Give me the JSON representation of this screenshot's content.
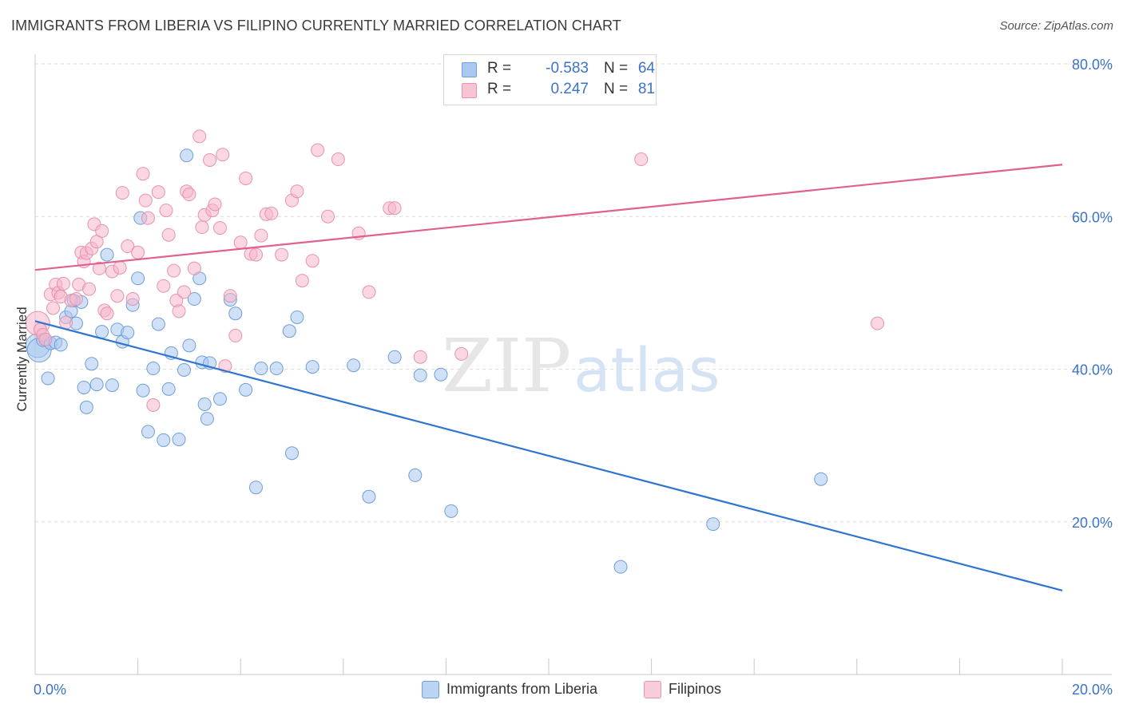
{
  "header": {
    "title": "IMMIGRANTS FROM LIBERIA VS FILIPINO CURRENTLY MARRIED CORRELATION CHART",
    "source": "Source: ZipAtlas.com"
  },
  "watermark": {
    "zip": "ZIP",
    "atlas": "atlas"
  },
  "legend_top": {
    "rows": [
      {
        "r_label": "R =",
        "r_value": "-0.583",
        "n_label": "N =",
        "n_value": "64"
      },
      {
        "r_label": "R =",
        "r_value": "0.247",
        "n_label": "N =",
        "n_value": "81"
      }
    ]
  },
  "legend_bottom": {
    "items": [
      {
        "label": "Immigrants from Liberia"
      },
      {
        "label": "Filipinos"
      }
    ]
  },
  "colors": {
    "liberia_fill": "#aac8f0",
    "liberia_stroke": "#6f9fd8",
    "liberia_line": "#2f74cf",
    "filipino_fill": "#f6b6cb",
    "filipino_stroke": "#e693b0",
    "filipino_line": "#e0608f",
    "tick_label": "#3a73c9",
    "grid": "#dddddd"
  },
  "chart_data": {
    "type": "scatter",
    "ylabel": "Currently Married",
    "xlim": [
      0,
      20
    ],
    "ylim": [
      0,
      80
    ],
    "x_ticks": [
      {
        "value": 0,
        "label": "0.0%"
      },
      {
        "value": 20,
        "label": "20.0%"
      }
    ],
    "y_ticks": [
      {
        "value": 20,
        "label": "20.0%"
      },
      {
        "value": 40,
        "label": "40.0%"
      },
      {
        "value": 60,
        "label": "60.0%"
      },
      {
        "value": 80,
        "label": "80.0%"
      }
    ],
    "grid": true,
    "legend": "top-center and bottom",
    "series": [
      {
        "name": "Immigrants from Liberia",
        "trend": [
          [
            0,
            46.3
          ],
          [
            20,
            11.0
          ]
        ],
        "points": [
          [
            0.05,
            43.1
          ],
          [
            0.08,
            42.5
          ],
          [
            0.15,
            43.8
          ],
          [
            0.2,
            43.9
          ],
          [
            0.25,
            38.8
          ],
          [
            0.3,
            43.4
          ],
          [
            0.4,
            43.5
          ],
          [
            0.5,
            43.2
          ],
          [
            0.6,
            46.8
          ],
          [
            0.7,
            47.6
          ],
          [
            0.75,
            49.0
          ],
          [
            0.8,
            46.0
          ],
          [
            0.9,
            48.8
          ],
          [
            0.95,
            37.6
          ],
          [
            1.0,
            35.0
          ],
          [
            1.1,
            40.7
          ],
          [
            1.2,
            38.0
          ],
          [
            1.3,
            44.9
          ],
          [
            1.4,
            55.0
          ],
          [
            1.5,
            37.9
          ],
          [
            1.6,
            45.2
          ],
          [
            1.7,
            43.6
          ],
          [
            1.8,
            44.8
          ],
          [
            1.9,
            48.4
          ],
          [
            2.0,
            51.9
          ],
          [
            2.05,
            59.8
          ],
          [
            2.1,
            37.2
          ],
          [
            2.2,
            31.8
          ],
          [
            2.3,
            40.1
          ],
          [
            2.4,
            45.9
          ],
          [
            2.5,
            30.7
          ],
          [
            2.6,
            37.4
          ],
          [
            2.65,
            42.1
          ],
          [
            2.8,
            30.8
          ],
          [
            2.9,
            39.9
          ],
          [
            2.95,
            68.0
          ],
          [
            3.0,
            43.1
          ],
          [
            3.1,
            49.2
          ],
          [
            3.2,
            51.9
          ],
          [
            3.25,
            40.9
          ],
          [
            3.3,
            35.4
          ],
          [
            3.35,
            33.5
          ],
          [
            3.4,
            40.8
          ],
          [
            3.6,
            36.1
          ],
          [
            3.8,
            49.1
          ],
          [
            3.9,
            47.3
          ],
          [
            4.1,
            37.3
          ],
          [
            4.3,
            24.5
          ],
          [
            4.4,
            40.1
          ],
          [
            4.7,
            40.1
          ],
          [
            4.95,
            45.0
          ],
          [
            5.0,
            29.0
          ],
          [
            5.1,
            46.8
          ],
          [
            5.4,
            40.3
          ],
          [
            6.2,
            40.5
          ],
          [
            6.5,
            23.3
          ],
          [
            7.0,
            41.6
          ],
          [
            7.4,
            26.1
          ],
          [
            7.5,
            39.2
          ],
          [
            7.9,
            39.3
          ],
          [
            8.1,
            21.4
          ],
          [
            11.4,
            14.1
          ],
          [
            13.2,
            19.7
          ],
          [
            15.3,
            25.6
          ]
        ]
      },
      {
        "name": "Filipinos",
        "trend": [
          [
            0,
            53.0
          ],
          [
            20,
            66.8
          ]
        ],
        "points": [
          [
            0.05,
            46.0
          ],
          [
            0.1,
            45.2
          ],
          [
            0.15,
            44.5
          ],
          [
            0.2,
            43.9
          ],
          [
            0.3,
            49.8
          ],
          [
            0.35,
            48.0
          ],
          [
            0.4,
            51.1
          ],
          [
            0.45,
            50.0
          ],
          [
            0.5,
            49.5
          ],
          [
            0.55,
            51.2
          ],
          [
            0.6,
            46.1
          ],
          [
            0.7,
            49.0
          ],
          [
            0.8,
            49.2
          ],
          [
            0.85,
            51.1
          ],
          [
            0.9,
            55.3
          ],
          [
            0.95,
            54.1
          ],
          [
            1.0,
            55.2
          ],
          [
            1.05,
            50.5
          ],
          [
            1.1,
            55.8
          ],
          [
            1.15,
            59.0
          ],
          [
            1.2,
            56.7
          ],
          [
            1.25,
            53.2
          ],
          [
            1.3,
            58.1
          ],
          [
            1.35,
            47.7
          ],
          [
            1.4,
            47.3
          ],
          [
            1.5,
            52.8
          ],
          [
            1.6,
            49.6
          ],
          [
            1.65,
            53.3
          ],
          [
            1.7,
            63.1
          ],
          [
            1.8,
            56.1
          ],
          [
            1.9,
            49.2
          ],
          [
            2.0,
            55.3
          ],
          [
            2.1,
            65.6
          ],
          [
            2.15,
            62.1
          ],
          [
            2.2,
            59.8
          ],
          [
            2.3,
            35.3
          ],
          [
            2.4,
            63.2
          ],
          [
            2.5,
            50.9
          ],
          [
            2.55,
            60.8
          ],
          [
            2.6,
            57.6
          ],
          [
            2.7,
            52.9
          ],
          [
            2.75,
            49.0
          ],
          [
            2.8,
            47.6
          ],
          [
            2.9,
            50.1
          ],
          [
            2.95,
            63.3
          ],
          [
            3.0,
            62.9
          ],
          [
            3.1,
            53.2
          ],
          [
            3.2,
            70.5
          ],
          [
            3.25,
            58.6
          ],
          [
            3.3,
            60.2
          ],
          [
            3.4,
            67.4
          ],
          [
            3.45,
            60.8
          ],
          [
            3.5,
            61.6
          ],
          [
            3.6,
            58.5
          ],
          [
            3.65,
            68.1
          ],
          [
            3.7,
            40.4
          ],
          [
            3.8,
            49.6
          ],
          [
            3.9,
            44.4
          ],
          [
            4.0,
            56.6
          ],
          [
            4.1,
            65.0
          ],
          [
            4.2,
            55.1
          ],
          [
            4.3,
            55.0
          ],
          [
            4.4,
            57.5
          ],
          [
            4.5,
            60.3
          ],
          [
            4.6,
            60.4
          ],
          [
            4.8,
            55.0
          ],
          [
            5.0,
            62.1
          ],
          [
            5.1,
            63.3
          ],
          [
            5.2,
            51.6
          ],
          [
            5.4,
            54.2
          ],
          [
            5.5,
            68.7
          ],
          [
            5.7,
            60.0
          ],
          [
            5.9,
            67.5
          ],
          [
            6.3,
            57.8
          ],
          [
            6.5,
            50.1
          ],
          [
            6.9,
            61.1
          ],
          [
            7.0,
            61.1
          ],
          [
            7.5,
            41.6
          ],
          [
            11.8,
            67.5
          ],
          [
            16.4,
            46.0
          ],
          [
            8.3,
            42.0
          ]
        ]
      }
    ]
  }
}
